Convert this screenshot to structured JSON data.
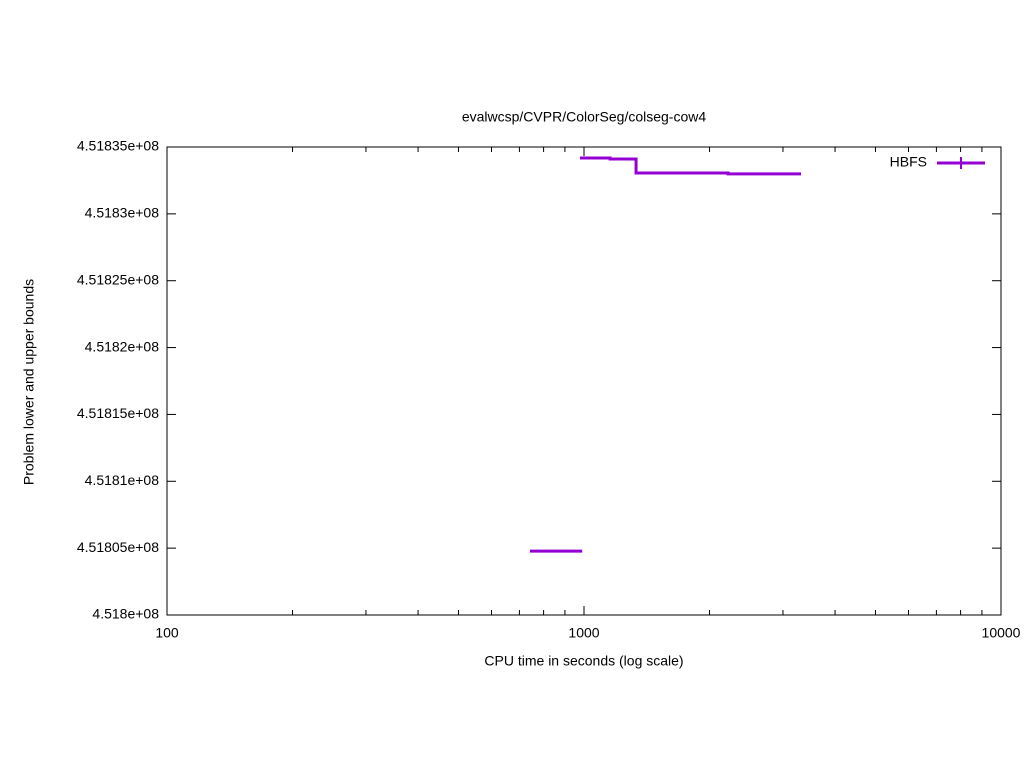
{
  "chart_data": {
    "type": "line",
    "title": "evalwcsp/CVPR/ColorSeg/colseg-cow4",
    "xlabel": "CPU time in seconds (log scale)",
    "ylabel": "Problem lower and upper bounds",
    "xscale": "log",
    "xlim": [
      100,
      10000
    ],
    "xticks": [
      100,
      1000,
      10000
    ],
    "ylim": [
      451800000,
      451835000
    ],
    "yticks": [
      {
        "value": 451800000,
        "label": "4.518e+08"
      },
      {
        "value": 451805000,
        "label": "4.51805e+08"
      },
      {
        "value": 451810000,
        "label": "4.5181e+08"
      },
      {
        "value": 451815000,
        "label": "4.51815e+08"
      },
      {
        "value": 451820000,
        "label": "4.5182e+08"
      },
      {
        "value": 451825000,
        "label": "4.51825e+08"
      },
      {
        "value": 451830000,
        "label": "4.5183e+08"
      },
      {
        "value": 451835000,
        "label": "4.51835e+08"
      }
    ],
    "legend": "top-right",
    "series": [
      {
        "name": "HBFS",
        "color": "#9400d3",
        "x": [
          978,
          1155,
          1333,
          2215,
          3315
        ],
        "values": [
          451834180,
          451834100,
          451833060,
          451832990,
          451832990
        ]
      }
    ],
    "lower_bound": {
      "color": "#9400d3",
      "x": [
        742,
        990
      ],
      "values": [
        451804780,
        451804780
      ]
    }
  }
}
